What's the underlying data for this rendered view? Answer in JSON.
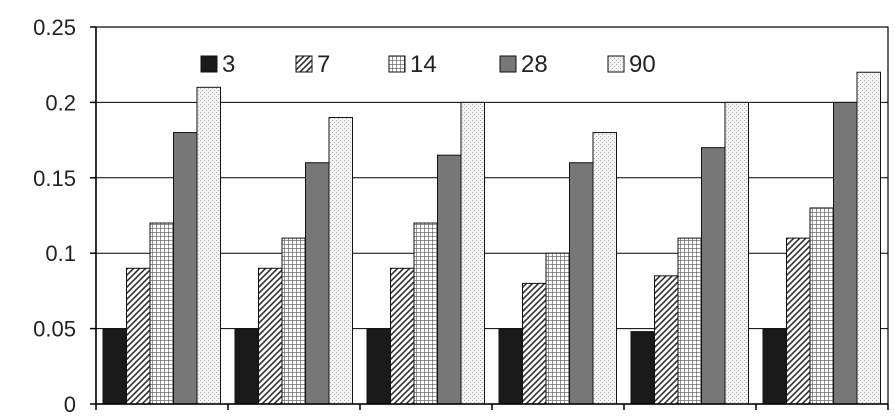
{
  "chart_data": {
    "type": "bar",
    "title": "",
    "xlabel": "",
    "ylabel": "",
    "ylim": [
      0,
      0.25
    ],
    "yticks": [
      "0",
      "0.05",
      "0.1",
      "0.15",
      "0.2",
      "0.25"
    ],
    "grid": true,
    "legend_position": "top-center",
    "group_count": 6,
    "categories": [
      "",
      "",
      "",
      "",
      "",
      ""
    ],
    "series": [
      {
        "name": "3",
        "pattern": "solid-black",
        "values": [
          0.05,
          0.05,
          0.05,
          0.05,
          0.048,
          0.05
        ]
      },
      {
        "name": "7",
        "pattern": "diagonal-hatch",
        "values": [
          0.09,
          0.09,
          0.09,
          0.08,
          0.085,
          0.11
        ]
      },
      {
        "name": "14",
        "pattern": "grid-hatch",
        "values": [
          0.12,
          0.11,
          0.12,
          0.1,
          0.11,
          0.13
        ]
      },
      {
        "name": "28",
        "pattern": "solid-gray",
        "values": [
          0.18,
          0.16,
          0.165,
          0.16,
          0.17,
          0.2
        ]
      },
      {
        "name": "90",
        "pattern": "light-dotted",
        "values": [
          0.21,
          0.19,
          0.2,
          0.18,
          0.2,
          0.22
        ]
      }
    ],
    "colors": {
      "solid-black": "#1a1a1a",
      "solid-gray": "#777777",
      "gridline": "#000000",
      "axis": "#000000"
    }
  }
}
